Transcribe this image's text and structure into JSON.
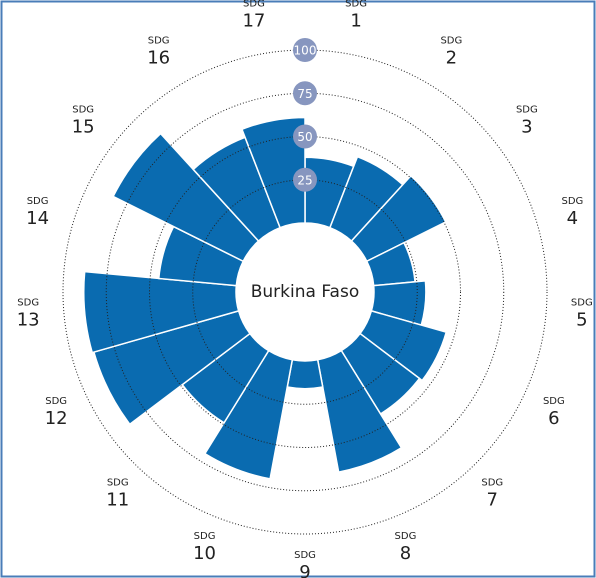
{
  "chart_data": {
    "type": "radial_bar",
    "title": "Burkina Faso",
    "category_prefix": "SDG",
    "categories": [
      "1",
      "2",
      "3",
      "4",
      "5",
      "6",
      "7",
      "8",
      "9",
      "10",
      "11",
      "12",
      "13",
      "14",
      "15",
      "16",
      "17"
    ],
    "values": [
      38,
      44,
      51,
      24,
      30,
      45,
      43,
      66,
      16,
      70,
      49,
      87,
      88,
      45,
      84,
      56,
      61
    ],
    "color": "#0a6bb0",
    "ylim": [
      0,
      100
    ],
    "yticks": [
      25,
      50,
      75,
      100
    ],
    "grid": true
  }
}
